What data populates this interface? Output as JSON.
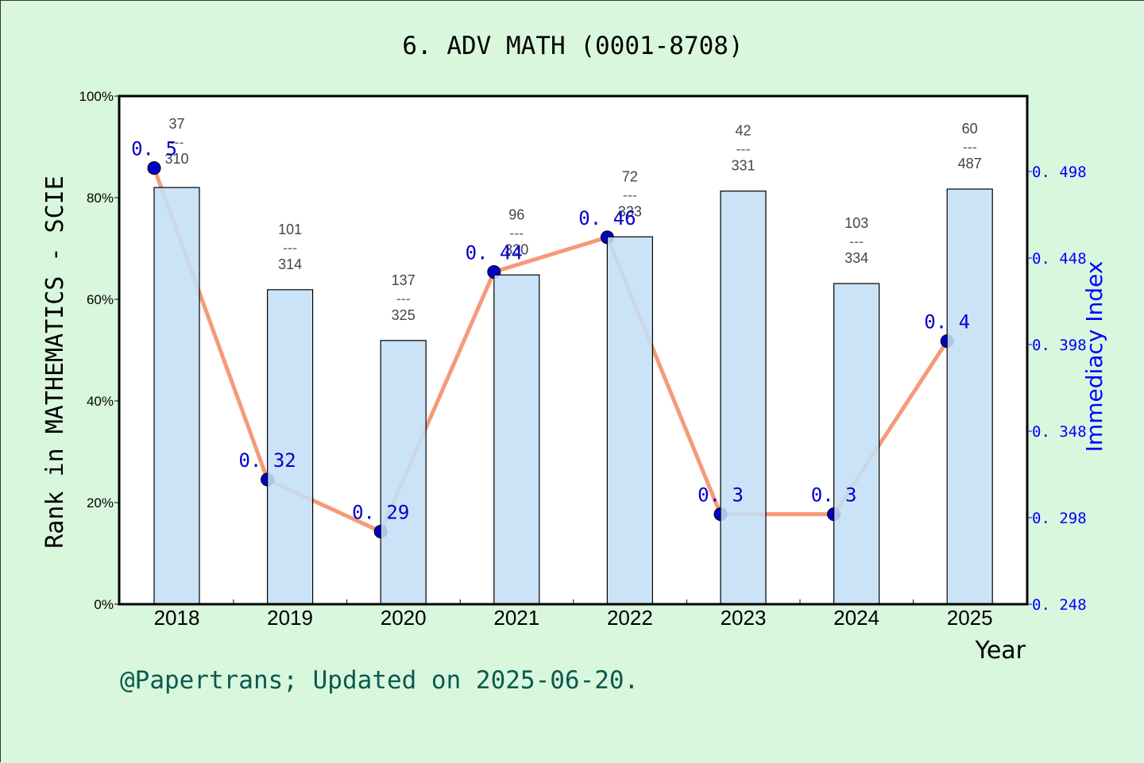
{
  "title": "6. ADV MATH (0001-8708)",
  "footer": "@Papertrans; Updated on 2025-06-20.",
  "colors": {
    "background": "#d9f7dd",
    "plot_background": "#ffffff",
    "bar_fill": "#c4dff5",
    "bar_edge": "#000000",
    "line": "#f59a7a",
    "marker": "#0000cc",
    "right_axis": "#0000ff",
    "footer": "#0a5a50"
  },
  "chart_data": {
    "type": "bar+line",
    "title": "6. ADV MATH (0001-8708)",
    "xlabel": "Year",
    "categories": [
      "2018",
      "2019",
      "2020",
      "2021",
      "2022",
      "2023",
      "2024",
      "2025"
    ],
    "series": [
      {
        "name": "Rank in MATHEMATICS - SCIE",
        "type": "bar",
        "axis": "left",
        "values": [
          82.0,
          61.9,
          51.9,
          64.8,
          72.3,
          81.3,
          63.1,
          81.7
        ],
        "labels": [
          {
            "rank": "37",
            "total": "310"
          },
          {
            "rank": "101",
            "total": "314"
          },
          {
            "rank": "137",
            "total": "325"
          },
          {
            "rank": "96",
            "total": "330"
          },
          {
            "rank": "72",
            "total": "333"
          },
          {
            "rank": "42",
            "total": "331"
          },
          {
            "rank": "103",
            "total": "334"
          },
          {
            "rank": "60",
            "total": "487"
          }
        ]
      },
      {
        "name": "Immediacy Index",
        "type": "line",
        "axis": "right",
        "values": [
          0.5,
          0.32,
          0.29,
          0.44,
          0.46,
          0.3,
          0.3,
          0.4
        ],
        "labels": [
          "0.5",
          "0.32",
          "0.29",
          "0.44",
          "0.46",
          "0.3",
          "0.3",
          "0.4"
        ]
      }
    ],
    "y_left": {
      "label": "Rank in MATHEMATICS - SCIE",
      "range": [
        0,
        100
      ],
      "ticks": [
        "0%",
        "20%",
        "40%",
        "60%",
        "80%",
        "100%"
      ],
      "tick_values": [
        0,
        20,
        40,
        60,
        80,
        100
      ]
    },
    "y_right": {
      "label": "Immediacy Index",
      "range": [
        0.248,
        0.52
      ],
      "ticks": [
        "0.248",
        "0.298",
        "0.348",
        "0.398",
        "0.448",
        "0.498"
      ],
      "tick_values": [
        0.248,
        0.298,
        0.348,
        0.398,
        0.448,
        0.498
      ]
    },
    "grid": false,
    "legend": "none"
  }
}
